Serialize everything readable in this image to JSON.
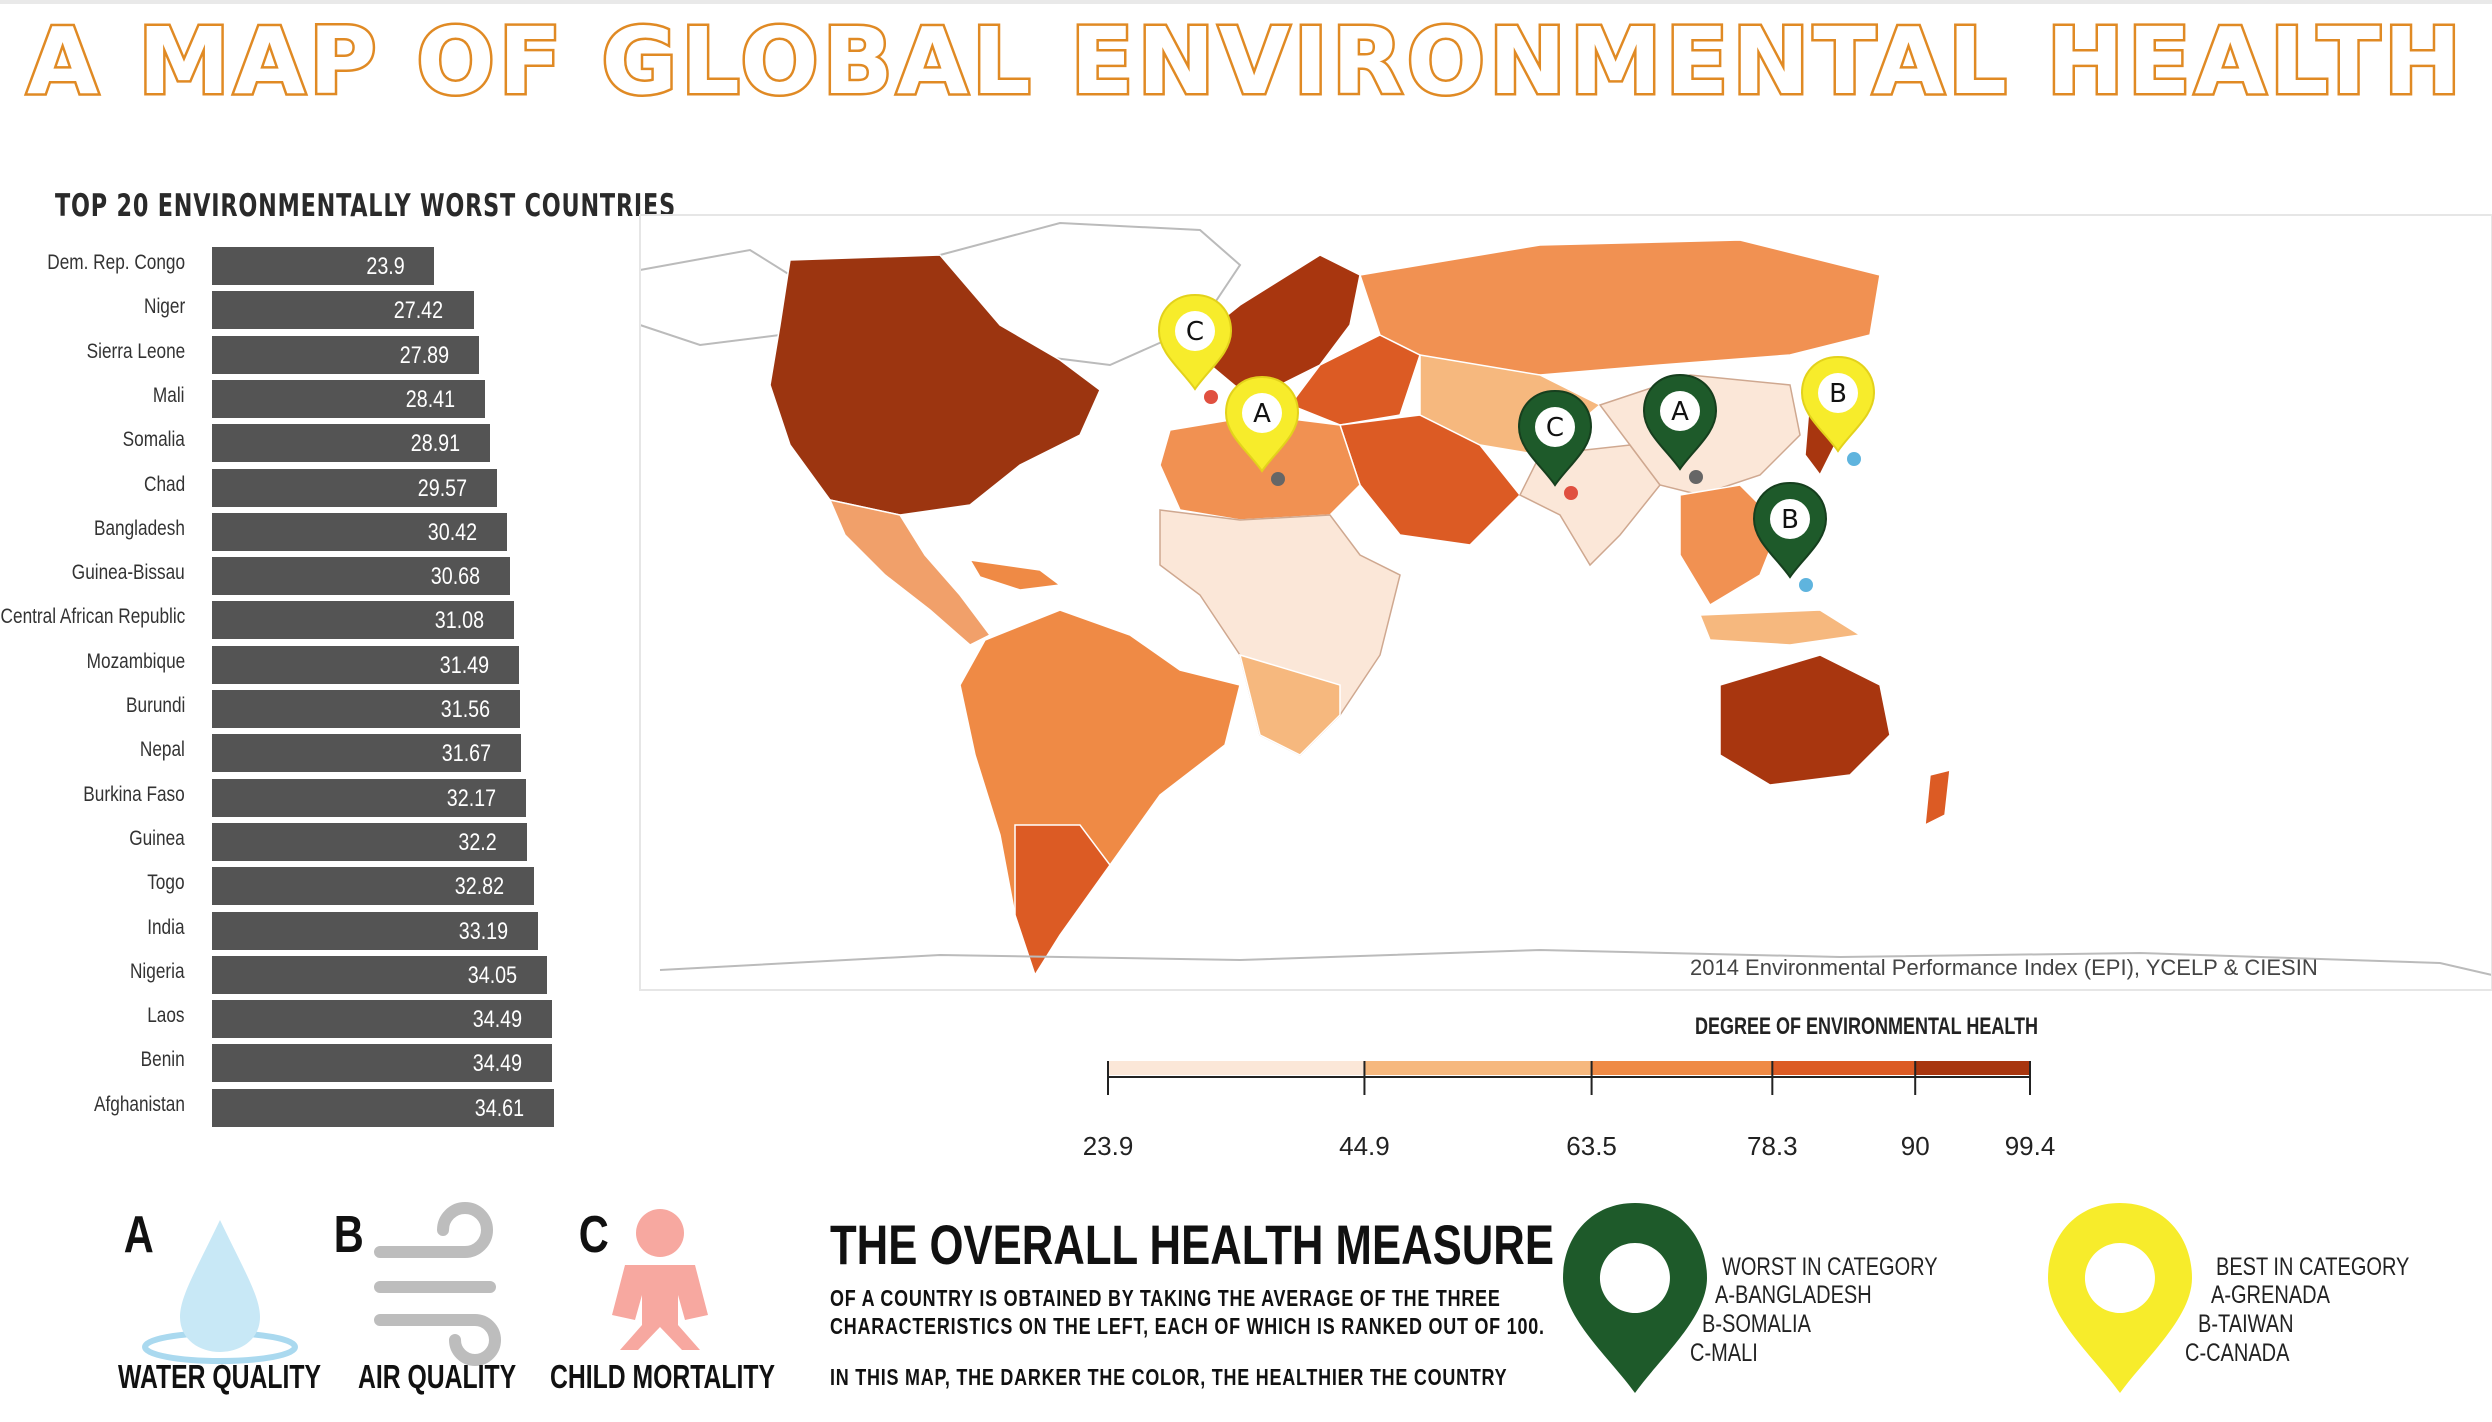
{
  "title": "A MAP OF GLOBAL ENVIRONMENTAL HEALTH",
  "chart_data": {
    "type": "bar",
    "title": "TOP 20 ENVIRONMENTALLY WORST COUNTRIES",
    "categories": [
      "Dem. Rep. Congo",
      "Niger",
      "Sierra Leone",
      "Mali",
      "Somalia",
      "Chad",
      "Bangladesh",
      "Guinea-Bissau",
      "Central African Republic",
      "Mozambique",
      "Burundi",
      "Nepal",
      "Burkina Faso",
      "Guinea",
      "Togo",
      "India",
      "Nigeria",
      "Laos",
      "Benin",
      "Afghanistan"
    ],
    "values": [
      23.9,
      27.42,
      27.89,
      28.41,
      28.91,
      29.57,
      30.42,
      30.68,
      31.08,
      31.49,
      31.56,
      31.67,
      32.17,
      32.2,
      32.82,
      33.19,
      34.05,
      34.49,
      34.49,
      34.61
    ],
    "value_labels": [
      "23.9",
      "27.42",
      "27.89",
      "28.41",
      "28.91",
      "29.57",
      "30.42",
      "30.68",
      "31.08",
      "31.49",
      "31.56",
      "31.67",
      "32.17",
      "32.2",
      "32.82",
      "33.19",
      "34.05",
      "34.49",
      "34.49",
      "34.61"
    ],
    "orientation": "horizontal",
    "bar_color": "#545454"
  },
  "map": {
    "credit": "2014 Environmental Performance Index (EPI), YCELP & CIESIN",
    "pins": [
      {
        "letter": "C",
        "type": "best",
        "place": "Canada"
      },
      {
        "letter": "A",
        "type": "best",
        "place": "Grenada"
      },
      {
        "letter": "C",
        "type": "worst",
        "place": "Mali"
      },
      {
        "letter": "B",
        "type": "worst",
        "place": "Somalia"
      },
      {
        "letter": "A",
        "type": "worst",
        "place": "Bangladesh"
      },
      {
        "letter": "B",
        "type": "best",
        "place": "Taiwan"
      }
    ],
    "colors": {
      "worst_pin": "#1e5a2a",
      "best_pin": "#f7ec2b"
    }
  },
  "legend": {
    "title": "DEGREE OF ENVIRONMENTAL HEALTH",
    "ticks": [
      "23.9",
      "44.9",
      "63.5",
      "78.3",
      "90",
      "99.4"
    ],
    "breaks": [
      23.9,
      44.9,
      63.5,
      78.3,
      90,
      99.4
    ],
    "colors": [
      "#fbe7d8",
      "#f6b87e",
      "#ef8a45",
      "#dc5b24",
      "#a8360f"
    ]
  },
  "categories": [
    {
      "letter": "A",
      "label": "WATER QUALITY",
      "icon": "water-drop-icon"
    },
    {
      "letter": "B",
      "label": "AIR QUALITY",
      "icon": "wind-icon"
    },
    {
      "letter": "C",
      "label": "CHILD MORTALITY",
      "icon": "baby-icon"
    }
  ],
  "measure": {
    "title": "THE OVERALL HEALTH MEASURE",
    "line1": "OF A COUNTRY IS OBTAINED BY TAKING THE AVERAGE OF THE THREE",
    "line2": "CHARACTERISTICS ON THE LEFT, EACH OF WHICH IS RANKED OUT OF 100.",
    "line3": "IN THIS MAP, THE DARKER THE COLOR, THE HEALTHIER THE COUNTRY"
  },
  "pin_legend": {
    "worst": {
      "heading": "WORST IN CATEGORY",
      "items": [
        "A-BANGLADESH",
        "B-SOMALIA",
        "C-MALI"
      ]
    },
    "best": {
      "heading": "BEST IN CATEGORY",
      "items": [
        "A-GRENADA",
        "B-TAIWAN",
        "C-CANADA"
      ]
    }
  }
}
